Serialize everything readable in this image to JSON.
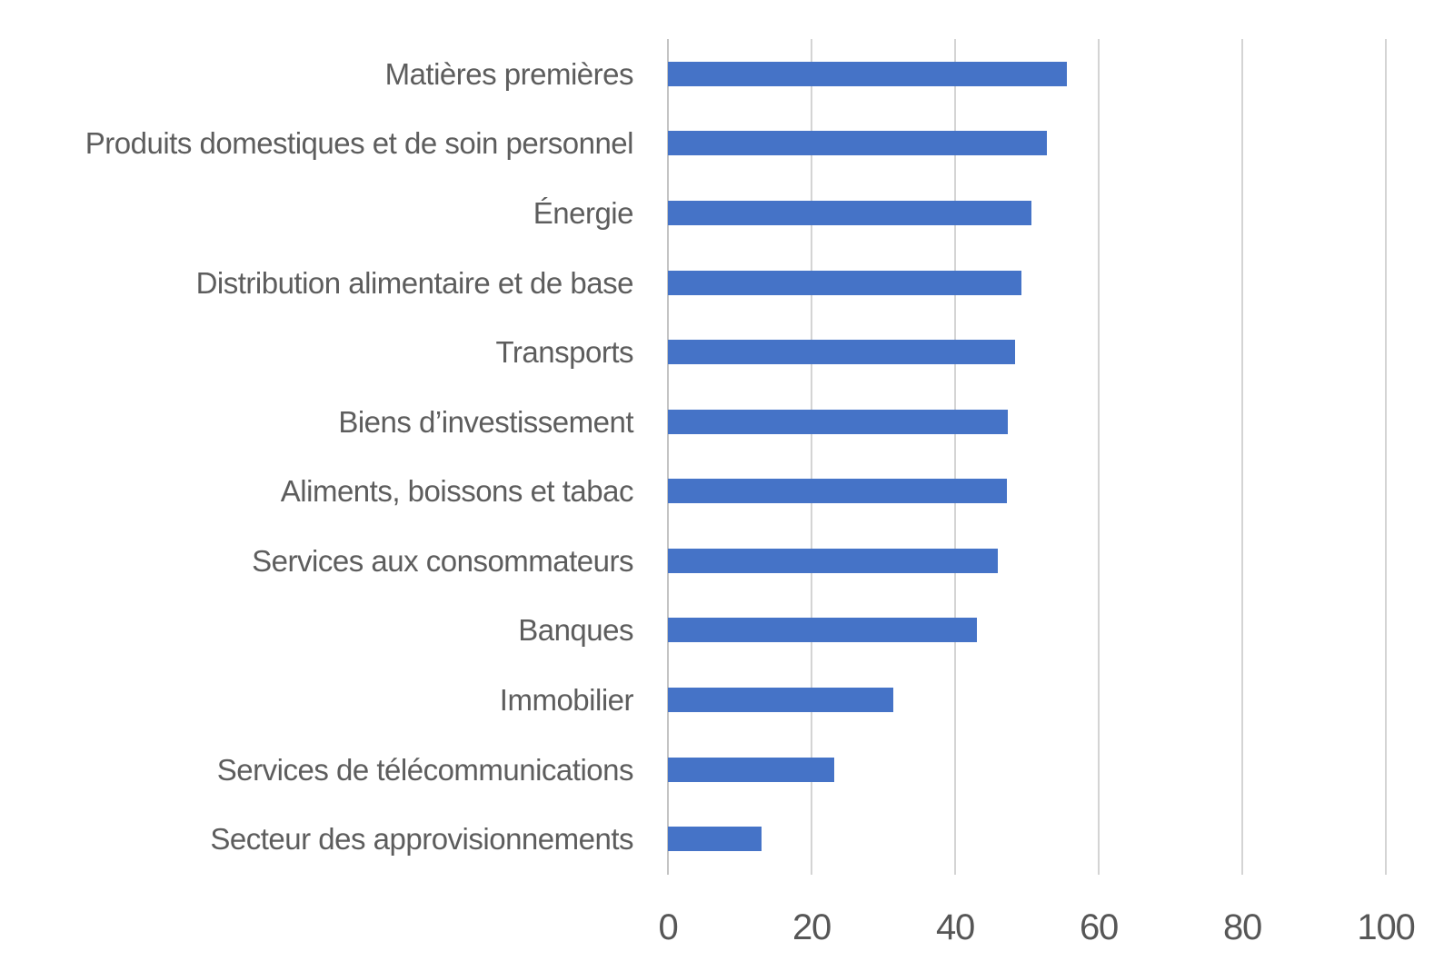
{
  "chart_data": {
    "type": "bar",
    "orientation": "horizontal",
    "title": "",
    "xlabel": "",
    "ylabel": "",
    "xlim": [
      0,
      100
    ],
    "x_ticks": [
      0,
      20,
      40,
      60,
      80,
      100
    ],
    "grid": true,
    "legend": null,
    "categories": [
      "Matières premières",
      "Produits domestiques et de soin personnel",
      "Énergie",
      "Distribution alimentaire et de base",
      "Transports",
      "Biens d’investissement",
      "Aliments, boissons et tabac",
      "Services aux consommateurs",
      "Banques",
      "Immobilier",
      "Services de télécommunications",
      "Secteur des approvisionnements"
    ],
    "values": [
      55.6,
      52.8,
      50.6,
      49.2,
      48.4,
      47.4,
      47.2,
      45.9,
      43.0,
      31.4,
      23.2,
      13.1
    ],
    "colors": {
      "bar": "#4573c7",
      "gridline": "#d4d4d4",
      "axis_line": "#c4c4c4",
      "category_label": "#5d5d5d",
      "tick_label": "#565656",
      "background": "#ffffff"
    }
  }
}
